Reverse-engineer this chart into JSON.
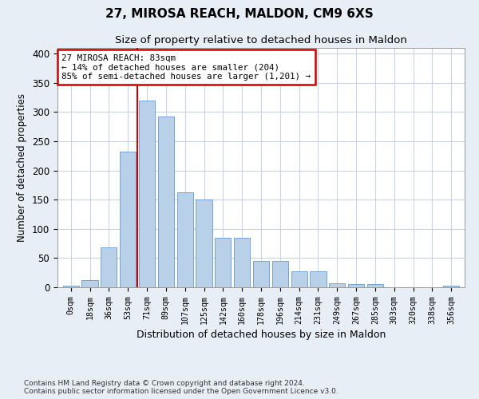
{
  "title1": "27, MIROSA REACH, MALDON, CM9 6XS",
  "title2": "Size of property relative to detached houses in Maldon",
  "xlabel": "Distribution of detached houses by size in Maldon",
  "ylabel": "Number of detached properties",
  "bar_labels": [
    "0sqm",
    "18sqm",
    "36sqm",
    "53sqm",
    "71sqm",
    "89sqm",
    "107sqm",
    "125sqm",
    "142sqm",
    "160sqm",
    "178sqm",
    "196sqm",
    "214sqm",
    "231sqm",
    "249sqm",
    "267sqm",
    "285sqm",
    "303sqm",
    "320sqm",
    "338sqm",
    "356sqm"
  ],
  "bar_values": [
    3,
    12,
    68,
    233,
    320,
    292,
    162,
    150,
    85,
    85,
    45,
    45,
    27,
    27,
    7,
    5,
    5,
    0,
    0,
    0,
    3
  ],
  "bar_color": "#b8d0e8",
  "bar_edgecolor": "#6699cc",
  "vline_color": "#cc0000",
  "annotation_text": "27 MIROSA REACH: 83sqm\n← 14% of detached houses are smaller (204)\n85% of semi-detached houses are larger (1,201) →",
  "annotation_box_facecolor": "#ffffff",
  "annotation_box_edgecolor": "#cc0000",
  "ylim": [
    0,
    410
  ],
  "yticks": [
    0,
    50,
    100,
    150,
    200,
    250,
    300,
    350,
    400
  ],
  "footer1": "Contains HM Land Registry data © Crown copyright and database right 2024.",
  "footer2": "Contains public sector information licensed under the Open Government Licence v3.0.",
  "bg_color": "#e8eef5",
  "plot_bg_color": "#ffffff",
  "grid_color": "#c8d4e4"
}
